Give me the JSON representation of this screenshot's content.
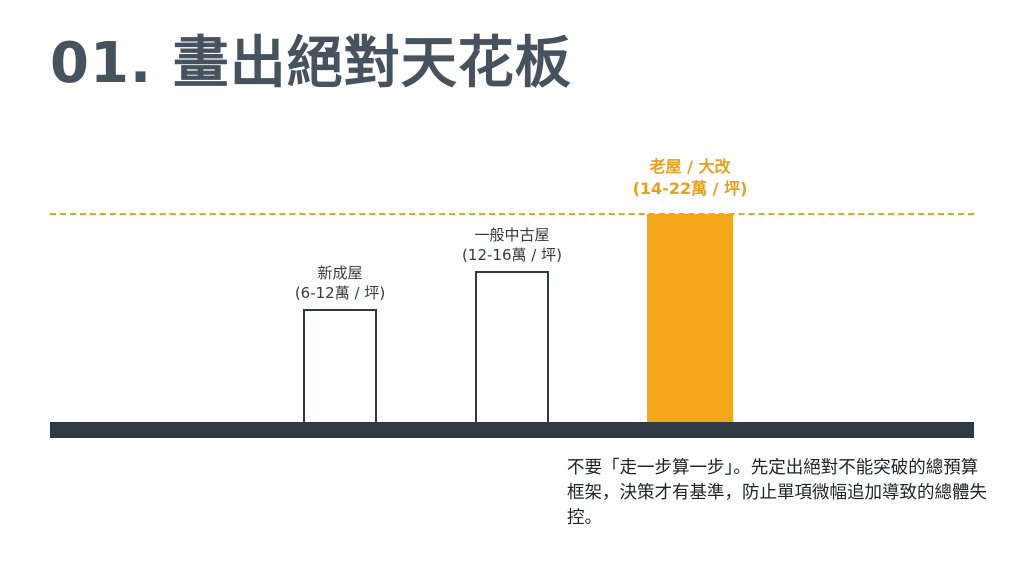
{
  "title": "01. 畫出絕對天花板",
  "chart_data": {
    "type": "bar",
    "categories": [
      {
        "name": "新成屋",
        "range": "(6-12萬 / 坪)",
        "min": 6,
        "max": 12,
        "highlight": false
      },
      {
        "name": "一般中古屋",
        "range": "(12-16萬 / 坪)",
        "min": 12,
        "max": 16,
        "highlight": false
      },
      {
        "name": "老屋 / 大改",
        "range": "(14-22萬 / 坪)",
        "min": 14,
        "max": 22,
        "highlight": true
      }
    ],
    "ceiling_value": 22,
    "unit": "萬 / 坪",
    "colors": {
      "highlight": "#f5a619",
      "outline": "#2f3a44",
      "ceiling_line": "#e6a420"
    }
  },
  "note": {
    "text": "不要「走一步算一步」。先定出絕對不能突破的總預算框架，決策才有基準，防止單項微幅追加導致的總體失控。"
  }
}
